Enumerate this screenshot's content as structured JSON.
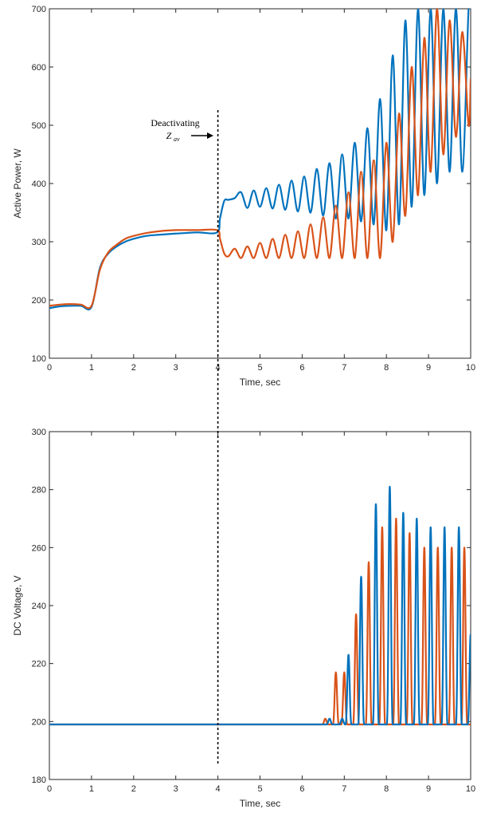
{
  "colors": {
    "series1": "#0072BD",
    "series2": "#D95319",
    "axis": "#262626",
    "marker": "#000000"
  },
  "annotation": {
    "text": "Deactivating",
    "symbol": "Z",
    "subscript": "av",
    "at_x": 4
  },
  "chart_data": [
    {
      "type": "line",
      "xlabel": "Time, sec",
      "ylabel": "Active Power, W",
      "xlim": [
        0,
        10
      ],
      "ylim": [
        100,
        700
      ],
      "xticks": [
        "0",
        "1",
        "2",
        "3",
        "4",
        "5",
        "6",
        "7",
        "8",
        "9",
        "10"
      ],
      "yticks": [
        "100",
        "200",
        "300",
        "400",
        "500",
        "600",
        "700"
      ],
      "grid": false,
      "series": [
        {
          "values_note": "",
          "x": [
            0,
            0.25,
            0.5,
            0.75,
            1.0,
            1.2,
            1.4,
            1.6,
            1.8,
            2.0,
            2.3,
            2.6,
            3.0,
            3.5,
            3.98,
            4.05,
            4.15,
            4.25,
            4.4,
            4.55,
            4.7,
            4.85,
            5.0,
            5.15,
            5.3,
            5.45,
            5.6,
            5.75,
            5.9,
            6.05,
            6.2,
            6.35,
            6.5,
            6.65,
            6.8,
            6.95,
            7.1,
            7.25,
            7.4,
            7.55,
            7.7,
            7.85,
            8.0,
            8.15,
            8.3,
            8.45,
            8.6,
            8.75,
            8.9,
            9.05,
            9.2,
            9.35,
            9.5,
            9.65,
            9.8,
            9.95,
            10.0
          ],
          "y": [
            186,
            189,
            190,
            190,
            188,
            255,
            280,
            292,
            300,
            305,
            310,
            312,
            314,
            316,
            316,
            340,
            370,
            372,
            375,
            385,
            358,
            388,
            360,
            392,
            357,
            398,
            355,
            405,
            352,
            412,
            350,
            425,
            345,
            435,
            340,
            450,
            340,
            470,
            335,
            495,
            330,
            545,
            320,
            620,
            330,
            680,
            360,
            700,
            380,
            700,
            400,
            700,
            420,
            700,
            420,
            700,
            700
          ]
        },
        {
          "values_note": "",
          "x": [
            0,
            0.25,
            0.5,
            0.75,
            1.0,
            1.2,
            1.4,
            1.6,
            1.8,
            2.0,
            2.3,
            2.6,
            3.0,
            3.5,
            3.98,
            4.05,
            4.15,
            4.25,
            4.4,
            4.55,
            4.7,
            4.85,
            5.0,
            5.15,
            5.3,
            5.45,
            5.6,
            5.75,
            5.9,
            6.05,
            6.2,
            6.35,
            6.5,
            6.65,
            6.8,
            6.95,
            7.1,
            7.25,
            7.4,
            7.55,
            7.7,
            7.85,
            8.0,
            8.15,
            8.3,
            8.45,
            8.6,
            8.75,
            8.9,
            9.05,
            9.2,
            9.35,
            9.5,
            9.65,
            9.8,
            9.95,
            10.0
          ],
          "y": [
            190,
            192,
            193,
            192,
            190,
            252,
            282,
            295,
            305,
            310,
            315,
            318,
            320,
            320,
            320,
            305,
            280,
            275,
            288,
            272,
            292,
            272,
            298,
            272,
            305,
            272,
            312,
            272,
            318,
            272,
            330,
            272,
            342,
            272,
            362,
            272,
            385,
            272,
            420,
            272,
            440,
            272,
            470,
            300,
            520,
            345,
            600,
            380,
            650,
            420,
            700,
            450,
            680,
            480,
            660,
            500,
            580
          ]
        }
      ]
    },
    {
      "type": "line",
      "xlabel": "Time, sec",
      "ylabel": "DC Voltage, V",
      "xlim": [
        0,
        10
      ],
      "ylim": [
        180,
        300
      ],
      "xticks": [
        "0",
        "1",
        "2",
        "3",
        "4",
        "5",
        "6",
        "7",
        "8",
        "9",
        "10"
      ],
      "yticks": [
        "180",
        "200",
        "220",
        "240",
        "260",
        "280",
        "300"
      ],
      "grid": false,
      "series": [
        {
          "values_note": "",
          "peaks_x": [
            6.65,
            6.95,
            7.1,
            7.4,
            7.75,
            8.08,
            8.4,
            8.72,
            9.05,
            9.38,
            9.72,
            10.0
          ],
          "peaks_y": [
            201,
            201,
            223,
            250,
            275,
            281,
            272,
            270,
            267,
            267,
            267,
            230
          ],
          "baseline": 199
        },
        {
          "values_note": "",
          "peaks_x": [
            6.55,
            6.8,
            7.0,
            7.28,
            7.58,
            7.9,
            8.23,
            8.55,
            8.9,
            9.22,
            9.55,
            9.85
          ],
          "peaks_y": [
            201,
            217,
            217,
            237,
            255,
            267,
            270,
            265,
            260,
            260,
            260,
            260
          ],
          "baseline": 199
        }
      ]
    }
  ]
}
